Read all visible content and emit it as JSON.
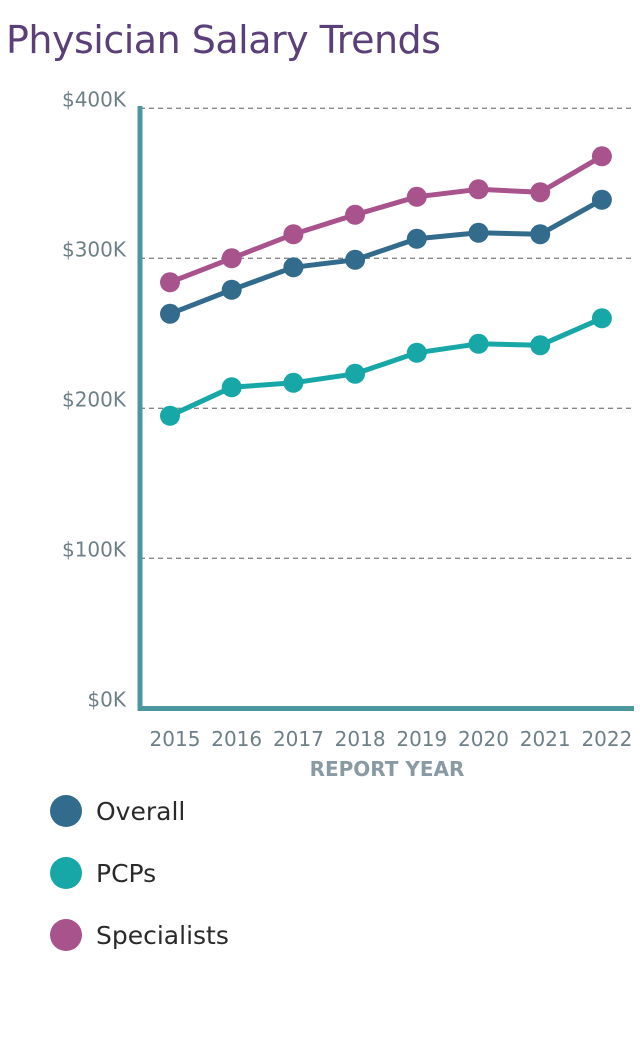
{
  "chart_data": {
    "type": "line",
    "title": "Physician Salary Trends",
    "xlabel": "REPORT YEAR",
    "ylabel": "",
    "categories": [
      "2015",
      "2016",
      "2017",
      "2018",
      "2019",
      "2020",
      "2021",
      "2022"
    ],
    "ylim": [
      0,
      400
    ],
    "yticks": [
      {
        "value": 0,
        "label": "$0K"
      },
      {
        "value": 100,
        "label": "$100K"
      },
      {
        "value": 200,
        "label": "$200K"
      },
      {
        "value": 300,
        "label": "$300K"
      },
      {
        "value": 400,
        "label": "$400K"
      }
    ],
    "grid": "horizontal dashed",
    "legend_position": "bottom",
    "series": [
      {
        "name": "Overall",
        "color": "#336b8c",
        "values": [
          263,
          279,
          294,
          299,
          313,
          317,
          316,
          339
        ]
      },
      {
        "name": "PCPs",
        "color": "#17a7a7",
        "values": [
          195,
          214,
          217,
          223,
          237,
          243,
          242,
          260
        ]
      },
      {
        "name": "Specialists",
        "color": "#a8538c",
        "values": [
          284,
          300,
          316,
          329,
          341,
          346,
          344,
          368
        ]
      }
    ],
    "axis_color": "#4a97a0"
  }
}
